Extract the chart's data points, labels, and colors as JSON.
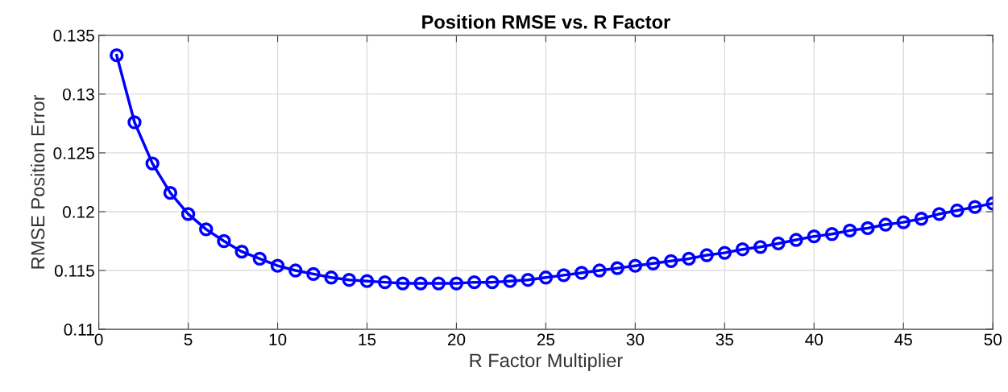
{
  "chart_data": {
    "type": "line",
    "title": "Position RMSE vs. R Factor",
    "xlabel": "R Factor Multiplier",
    "ylabel": "RMSE Position Error",
    "x": [
      1,
      2,
      3,
      4,
      5,
      6,
      7,
      8,
      9,
      10,
      11,
      12,
      13,
      14,
      15,
      16,
      17,
      18,
      19,
      20,
      21,
      22,
      23,
      24,
      25,
      26,
      27,
      28,
      29,
      30,
      31,
      32,
      33,
      34,
      35,
      36,
      37,
      38,
      39,
      40,
      41,
      42,
      43,
      44,
      45,
      46,
      47,
      48,
      49,
      50
    ],
    "series": [
      {
        "color": "#0000ff",
        "values": [
          0.1333,
          0.1276,
          0.1241,
          0.1216,
          0.1198,
          0.1185,
          0.1175,
          0.1166,
          0.116,
          0.1154,
          0.115,
          0.1147,
          0.1144,
          0.1142,
          0.1141,
          0.114,
          0.1139,
          0.1139,
          0.1139,
          0.1139,
          0.114,
          0.114,
          0.1141,
          0.1142,
          0.1144,
          0.1146,
          0.1148,
          0.115,
          0.1152,
          0.1154,
          0.1156,
          0.1158,
          0.116,
          0.1163,
          0.1165,
          0.1168,
          0.117,
          0.1173,
          0.1176,
          0.1179,
          0.1181,
          0.1184,
          0.1186,
          0.1189,
          0.1191,
          0.1194,
          0.1198,
          0.1201,
          0.1204,
          0.1207
        ]
      }
    ],
    "xlim": [
      0,
      50
    ],
    "xticks": [
      0,
      5,
      10,
      15,
      20,
      25,
      30,
      35,
      40,
      45,
      50
    ],
    "ylim": [
      0.11,
      0.135
    ],
    "yticks": [
      0.11,
      0.115,
      0.12,
      0.125,
      0.13,
      0.135
    ],
    "grid": true,
    "marker": "circle",
    "line_style": "solid"
  }
}
